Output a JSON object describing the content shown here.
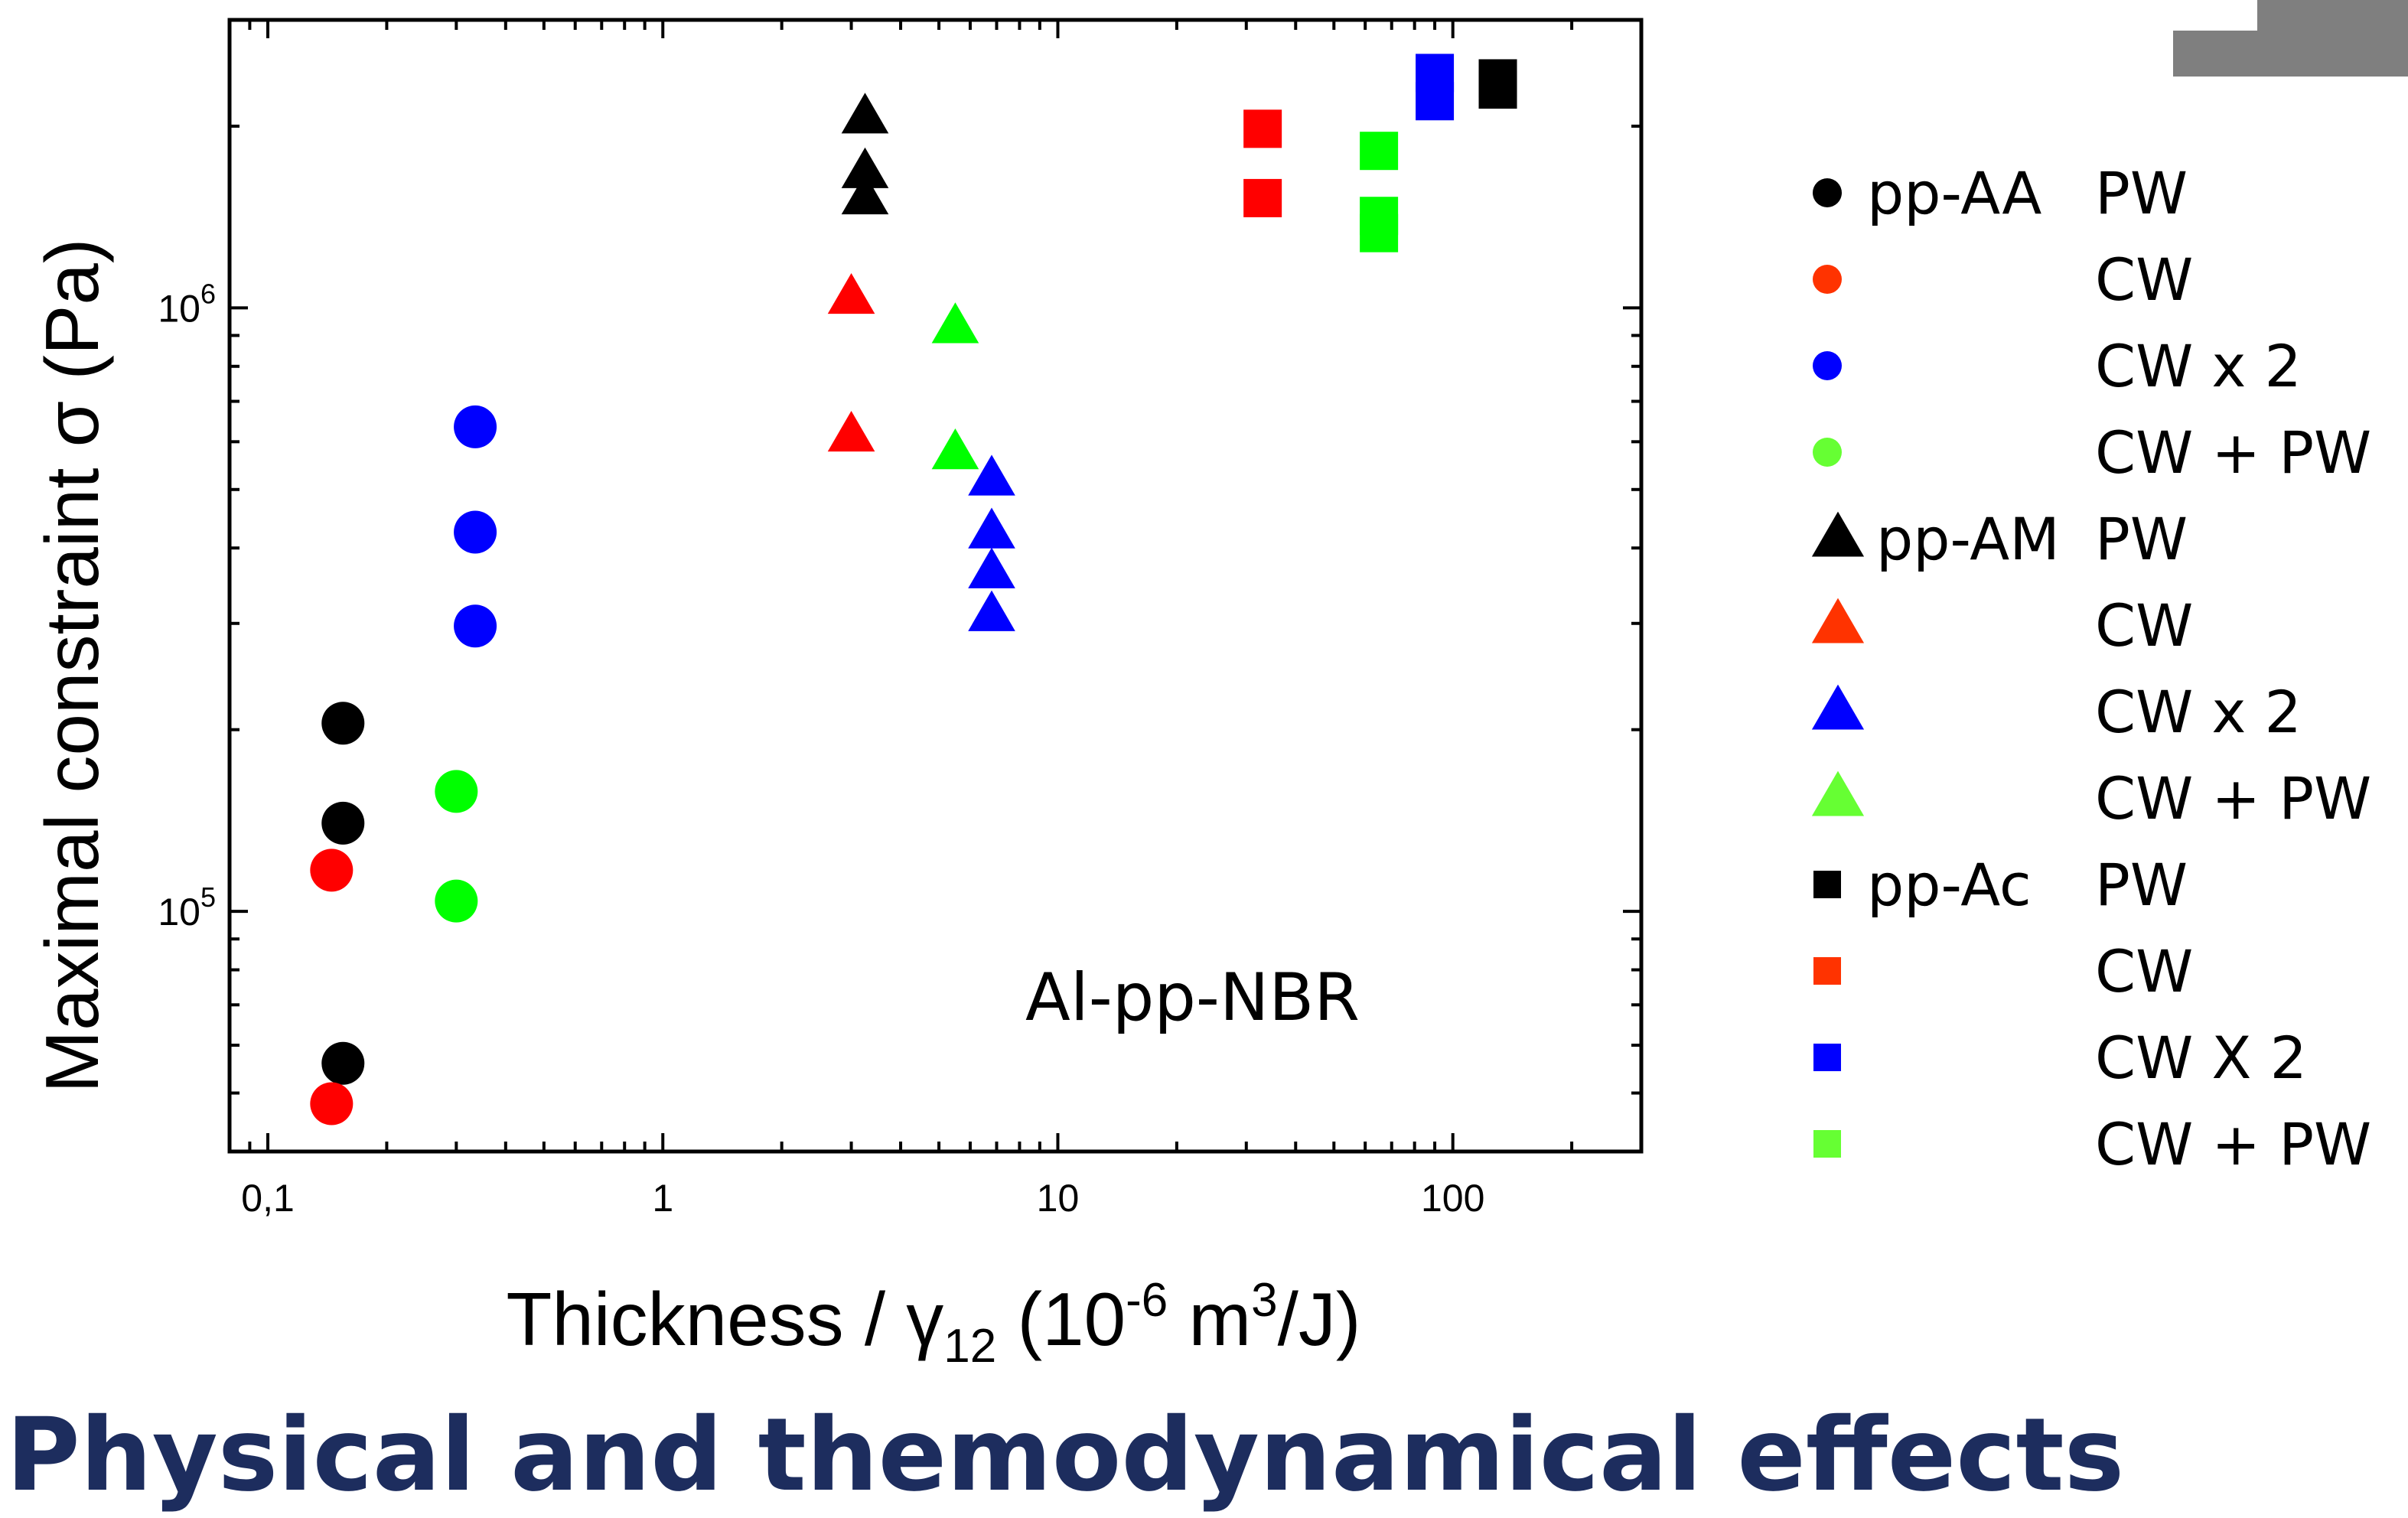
{
  "slide": {
    "title": "Physical and themodynamical effects"
  },
  "chart_data": {
    "type": "scatter",
    "xscale": "log",
    "yscale": "log",
    "xlim": [
      0.08,
      300
    ],
    "ylim": [
      40000,
      3000000
    ],
    "grid": false,
    "legend_position": "right",
    "ylabel": "Maximal constraint σ (Pa)",
    "ylabel_main": "Maximal constraint",
    "ylabel_symbol": "σ",
    "ylabel_unit": "(Pa)",
    "xlabel": "Thickness / γ12 (10-6 m3/J)",
    "xlabel_pre": "Thickness / ",
    "xlabel_gamma": "γ",
    "xlabel_gamma_sub": "12",
    "xlabel_unit_open": " (10",
    "xlabel_unit_exp": "-6",
    "xlabel_unit_m": " m",
    "xlabel_unit_m_exp": "3",
    "xlabel_unit_close": "/J)",
    "x_ticks": [
      {
        "value": 0.1,
        "label": "0,1"
      },
      {
        "value": 1,
        "label": "1"
      },
      {
        "value": 10,
        "label": "10"
      },
      {
        "value": 100,
        "label": "100"
      }
    ],
    "y_ticks": [
      {
        "value": 100000,
        "base": "10",
        "exp": "5"
      },
      {
        "value": 1000000,
        "base": "10",
        "exp": "6"
      }
    ],
    "annotation": "Al-pp-NBR",
    "series": [
      {
        "key": "aa-pw",
        "marker": "circle",
        "color": "#000000",
        "points": [
          [
            0.155,
            205000
          ],
          [
            0.155,
            140000
          ],
          [
            0.155,
            56000
          ]
        ]
      },
      {
        "key": "aa-cw",
        "marker": "circle",
        "color": "#ff0000",
        "points": [
          [
            0.145,
            117000
          ],
          [
            0.145,
            48000
          ]
        ]
      },
      {
        "key": "aa-cw2",
        "marker": "circle",
        "color": "#0000ff",
        "points": [
          [
            0.335,
            635000
          ],
          [
            0.335,
            425000
          ],
          [
            0.335,
            297000
          ]
        ]
      },
      {
        "key": "aa-cwpw",
        "marker": "circle",
        "color": "#00ff00",
        "points": [
          [
            0.3,
            158000
          ],
          [
            0.3,
            104000
          ]
        ]
      },
      {
        "key": "am-pw",
        "marker": "triangle",
        "color": "#000000",
        "points": [
          [
            3.25,
            2070000
          ],
          [
            3.25,
            1680000
          ],
          [
            3.25,
            1520000
          ]
        ]
      },
      {
        "key": "am-cw",
        "marker": "triangle",
        "color": "#ff0000",
        "points": [
          [
            3.0,
            1040000
          ],
          [
            3.0,
            615000
          ]
        ]
      },
      {
        "key": "am-cw2",
        "marker": "triangle",
        "color": "#0000ff",
        "points": [
          [
            6.8,
            520000
          ],
          [
            6.8,
            425000
          ],
          [
            6.8,
            365000
          ],
          [
            6.8,
            310000
          ]
        ]
      },
      {
        "key": "am-cwpw",
        "marker": "triangle",
        "color": "#00ff00",
        "points": [
          [
            5.5,
            930000
          ],
          [
            5.5,
            575000
          ]
        ]
      },
      {
        "key": "ac-pw",
        "marker": "square",
        "color": "#000000",
        "points": [
          [
            130,
            2400000
          ],
          [
            130,
            2300000
          ]
        ]
      },
      {
        "key": "ac-cw",
        "marker": "square",
        "color": "#ff0000",
        "points": [
          [
            33,
            1980000
          ],
          [
            33,
            1520000
          ]
        ]
      },
      {
        "key": "ac-cw2",
        "marker": "square",
        "color": "#0000ff",
        "points": [
          [
            90,
            2450000
          ],
          [
            90,
            2200000
          ]
        ]
      },
      {
        "key": "ac-cwpw",
        "marker": "square",
        "color": "#00ff00",
        "points": [
          [
            65,
            1820000
          ],
          [
            65,
            1420000
          ],
          [
            65,
            1330000
          ]
        ]
      }
    ],
    "legend": [
      {
        "marker": "circle",
        "color": "#000000",
        "group": "pp-AA",
        "label": "PW"
      },
      {
        "marker": "circle",
        "color": "#ff3300",
        "group": "",
        "label": "CW"
      },
      {
        "marker": "circle",
        "color": "#0000ff",
        "group": "",
        "label": "CW x 2"
      },
      {
        "marker": "circle",
        "color": "#66ff33",
        "group": "",
        "label": "CW + PW"
      },
      {
        "marker": "triangle",
        "color": "#000000",
        "group": "pp-AM",
        "label": "PW"
      },
      {
        "marker": "triangle",
        "color": "#ff3300",
        "group": "",
        "label": "CW"
      },
      {
        "marker": "triangle",
        "color": "#0000ff",
        "group": "",
        "label": "CW x 2"
      },
      {
        "marker": "triangle",
        "color": "#66ff33",
        "group": "",
        "label": "CW + PW"
      },
      {
        "marker": "square",
        "color": "#000000",
        "group": "pp-Ac",
        "label": "PW"
      },
      {
        "marker": "square",
        "color": "#ff3300",
        "group": "",
        "label": "CW"
      },
      {
        "marker": "square",
        "color": "#0000ff",
        "group": "",
        "label": "CW X 2"
      },
      {
        "marker": "square",
        "color": "#66ff33",
        "group": "",
        "label": "CW + PW"
      }
    ]
  }
}
